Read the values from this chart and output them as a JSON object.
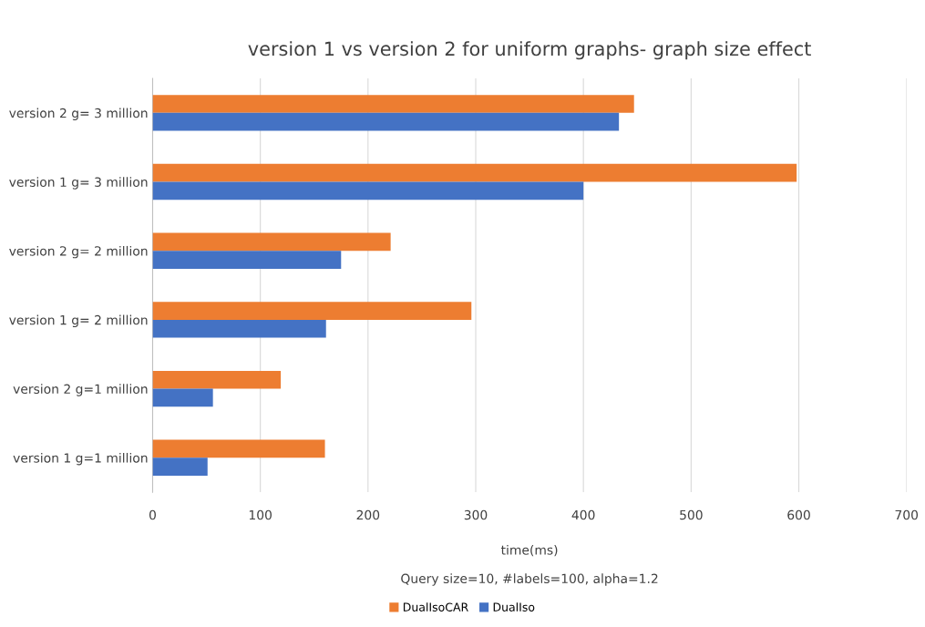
{
  "chart_data": {
    "type": "bar",
    "orientation": "horizontal",
    "title": "version 1 vs version 2 for uniform graphs- graph size effect",
    "xlabel": "time(ms)",
    "annotations": [
      "Query size=10, #labels=100, alpha=1.2"
    ],
    "categories": [
      "version 2 g= 3 million",
      "version 1 g= 3 million",
      "version 2 g= 2 million",
      "version 1 g= 2 million",
      "version 2 g=1 million",
      "version 1 g=1 million"
    ],
    "series": [
      {
        "name": "DualIsoCAR",
        "color": "#ed7d31",
        "values": [
          447,
          598,
          221,
          296,
          119,
          160
        ]
      },
      {
        "name": "DualIso",
        "color": "#4472c4",
        "values": [
          433,
          400,
          175,
          161,
          56,
          51
        ]
      }
    ],
    "xlim": [
      0,
      700
    ],
    "xticks": [
      0,
      100,
      200,
      300,
      400,
      500,
      600,
      700
    ],
    "grid": "x",
    "legend": "bottom"
  }
}
